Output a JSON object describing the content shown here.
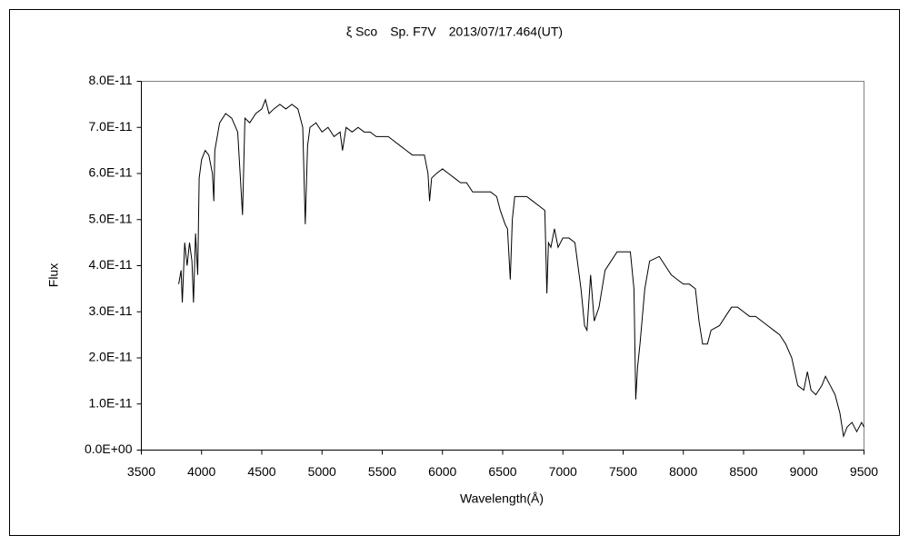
{
  "chart_data": {
    "type": "line",
    "title": "ξ Sco　Sp. F7V　2013/07/17.464(UT)",
    "x_label": "Wavelength(Å)",
    "y_label": "Flux",
    "xlim": [
      3500,
      9500
    ],
    "xticks": [
      3500,
      4000,
      4500,
      5000,
      5500,
      6000,
      6500,
      7000,
      7500,
      8000,
      8500,
      9000,
      9500
    ],
    "ylim": [
      0,
      8e-11
    ],
    "yticks": [
      {
        "value": 0,
        "label": "0.0E+00"
      },
      {
        "value": 1e-11,
        "label": "1.0E-11"
      },
      {
        "value": 2e-11,
        "label": "2.0E-11"
      },
      {
        "value": 3e-11,
        "label": "3.0E-11"
      },
      {
        "value": 4e-11,
        "label": "4.0E-11"
      },
      {
        "value": 5e-11,
        "label": "5.0E-11"
      },
      {
        "value": 6e-11,
        "label": "6.0E-11"
      },
      {
        "value": 7e-11,
        "label": "7.0E-11"
      },
      {
        "value": 8e-11,
        "label": "8.0E-11"
      }
    ],
    "grid": false,
    "series": [
      {
        "color": "#000000",
        "x": [
          3810,
          3830,
          3840,
          3860,
          3880,
          3900,
          3920,
          3933,
          3950,
          3968,
          3980,
          4000,
          4030,
          4060,
          4090,
          4102,
          4110,
          4150,
          4200,
          4250,
          4300,
          4320,
          4340,
          4360,
          4400,
          4450,
          4500,
          4530,
          4560,
          4600,
          4650,
          4700,
          4750,
          4800,
          4840,
          4861,
          4880,
          4900,
          4950,
          5000,
          5050,
          5100,
          5150,
          5170,
          5200,
          5250,
          5300,
          5350,
          5400,
          5450,
          5500,
          5550,
          5600,
          5650,
          5700,
          5750,
          5800,
          5850,
          5880,
          5893,
          5910,
          5950,
          6000,
          6050,
          6100,
          6150,
          6200,
          6250,
          6300,
          6350,
          6400,
          6450,
          6480,
          6520,
          6540,
          6563,
          6580,
          6600,
          6650,
          6700,
          6750,
          6800,
          6850,
          6867,
          6880,
          6900,
          6930,
          6960,
          7000,
          7050,
          7100,
          7150,
          7180,
          7200,
          7230,
          7260,
          7300,
          7350,
          7400,
          7450,
          7500,
          7560,
          7590,
          7605,
          7620,
          7640,
          7680,
          7720,
          7800,
          7850,
          7900,
          7950,
          8000,
          8050,
          8100,
          8130,
          8160,
          8200,
          8230,
          8300,
          8350,
          8400,
          8450,
          8500,
          8550,
          8600,
          8650,
          8700,
          8750,
          8800,
          8850,
          8900,
          8950,
          9000,
          9030,
          9060,
          9100,
          9150,
          9180,
          9220,
          9260,
          9300,
          9330,
          9360,
          9400,
          9440,
          9480,
          9500
        ],
        "values": [
          3.6e-11,
          3.9e-11,
          3.2e-11,
          4.5e-11,
          4e-11,
          4.5e-11,
          4.1e-11,
          3.2e-11,
          4.7e-11,
          3.8e-11,
          5.9e-11,
          6.3e-11,
          6.5e-11,
          6.4e-11,
          6e-11,
          5.4e-11,
          6.5e-11,
          7.1e-11,
          7.3e-11,
          7.2e-11,
          6.9e-11,
          6e-11,
          5.1e-11,
          7.2e-11,
          7.1e-11,
          7.3e-11,
          7.4e-11,
          7.6e-11,
          7.3e-11,
          7.4e-11,
          7.5e-11,
          7.4e-11,
          7.5e-11,
          7.4e-11,
          7e-11,
          4.9e-11,
          6.6e-11,
          7e-11,
          7.1e-11,
          6.9e-11,
          7e-11,
          6.8e-11,
          6.9e-11,
          6.5e-11,
          7e-11,
          6.9e-11,
          7e-11,
          6.9e-11,
          6.9e-11,
          6.8e-11,
          6.8e-11,
          6.8e-11,
          6.7e-11,
          6.6e-11,
          6.5e-11,
          6.4e-11,
          6.4e-11,
          6.4e-11,
          6e-11,
          5.4e-11,
          5.9e-11,
          6e-11,
          6.1e-11,
          6e-11,
          5.9e-11,
          5.8e-11,
          5.8e-11,
          5.6e-11,
          5.6e-11,
          5.6e-11,
          5.6e-11,
          5.5e-11,
          5.2e-11,
          4.9e-11,
          4.8e-11,
          3.7e-11,
          5e-11,
          5.5e-11,
          5.5e-11,
          5.5e-11,
          5.4e-11,
          5.3e-11,
          5.2e-11,
          3.4e-11,
          4.5e-11,
          4.4e-11,
          4.8e-11,
          4.4e-11,
          4.6e-11,
          4.6e-11,
          4.5e-11,
          3.5e-11,
          2.7e-11,
          2.6e-11,
          3.8e-11,
          2.8e-11,
          3.1e-11,
          3.9e-11,
          4.1e-11,
          4.3e-11,
          4.3e-11,
          4.3e-11,
          3.5e-11,
          1.1e-11,
          1.8e-11,
          2.3e-11,
          3.5e-11,
          4.1e-11,
          4.2e-11,
          4e-11,
          3.8e-11,
          3.7e-11,
          3.6e-11,
          3.6e-11,
          3.5e-11,
          2.8e-11,
          2.3e-11,
          2.3e-11,
          2.6e-11,
          2.7e-11,
          2.9e-11,
          3.1e-11,
          3.1e-11,
          3e-11,
          2.9e-11,
          2.9e-11,
          2.8e-11,
          2.7e-11,
          2.6e-11,
          2.5e-11,
          2.3e-11,
          2e-11,
          1.4e-11,
          1.3e-11,
          1.7e-11,
          1.3e-11,
          1.2e-11,
          1.4e-11,
          1.6e-11,
          1.4e-11,
          1.2e-11,
          8e-12,
          3e-12,
          5e-12,
          6e-12,
          4e-12,
          6e-12,
          5e-12
        ]
      }
    ]
  }
}
